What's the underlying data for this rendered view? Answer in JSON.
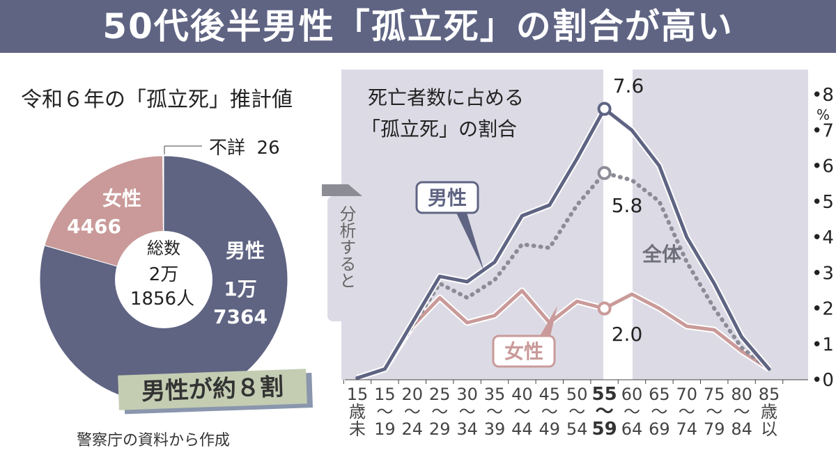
{
  "title": "50代後半男性「孤立死」の割合が高い",
  "pie": {
    "title": "令和６年の「孤立死」推計値",
    "unknown_label": "不詳",
    "unknown_value": "26",
    "female_label": "女性",
    "female_value": "4466",
    "male_label": "男性",
    "male_value_1": "1万",
    "male_value_2": "7364",
    "total_label": "総数",
    "total_1": "2万",
    "total_2": "1856人",
    "callout": "男性が約８割",
    "source": "警察庁の資料から作成"
  },
  "arrow_text": "分析すると",
  "colors": {
    "male": "#5f6483",
    "female": "#c99a99",
    "overall": "#8c8c98",
    "bg": "#dcdbe5",
    "title_bar": "#5f6483"
  },
  "chart_data": [
    {
      "type": "pie",
      "title": "令和６年の「孤立死」推計値",
      "labels": [
        "男性",
        "女性",
        "不詳"
      ],
      "values": [
        17364,
        4466,
        26
      ],
      "total": 21856
    },
    {
      "type": "line",
      "title": "死亡者数に占める「孤立死」の割合",
      "title_1": "死亡者数に占める",
      "title_2": "「孤立死」の割合",
      "categories": [
        [
          "15",
          "歳",
          "未"
        ],
        [
          "15",
          "〜",
          "19"
        ],
        [
          "20",
          "〜",
          "24"
        ],
        [
          "25",
          "〜",
          "29"
        ],
        [
          "30",
          "〜",
          "34"
        ],
        [
          "35",
          "〜",
          "39"
        ],
        [
          "40",
          "〜",
          "44"
        ],
        [
          "45",
          "〜",
          "49"
        ],
        [
          "50",
          "〜",
          "54"
        ],
        [
          "55",
          "〜",
          "59"
        ],
        [
          "60",
          "〜",
          "64"
        ],
        [
          "65",
          "〜",
          "69"
        ],
        [
          "70",
          "〜",
          "74"
        ],
        [
          "75",
          "〜",
          "79"
        ],
        [
          "80",
          "〜",
          "84"
        ],
        [
          "85",
          "歳",
          "以"
        ]
      ],
      "highlight_index": 9,
      "series": [
        {
          "name": "男性",
          "values": [
            0.05,
            0.3,
            1.6,
            2.9,
            2.75,
            3.3,
            4.6,
            4.9,
            6.2,
            7.6,
            7.0,
            6.0,
            4.0,
            2.7,
            1.2,
            0.3
          ],
          "label": "7.6"
        },
        {
          "name": "全体",
          "values": [
            0.05,
            0.3,
            1.5,
            2.7,
            2.3,
            2.8,
            3.8,
            3.7,
            4.9,
            5.8,
            5.6,
            5.0,
            3.3,
            2.0,
            0.9,
            0.3
          ],
          "label": "5.8"
        },
        {
          "name": "女性",
          "values": [
            0.05,
            0.3,
            1.5,
            2.3,
            1.6,
            1.8,
            2.5,
            1.6,
            2.2,
            2.0,
            2.4,
            2.0,
            1.5,
            1.4,
            0.8,
            0.3
          ],
          "label": "2.0"
        }
      ],
      "yticks": [
        "0",
        "1",
        "2",
        "3",
        "4",
        "5",
        "6",
        "7",
        "8"
      ],
      "yunit": "%",
      "ylim": [
        0,
        8
      ],
      "legend_placement": "inline"
    }
  ]
}
